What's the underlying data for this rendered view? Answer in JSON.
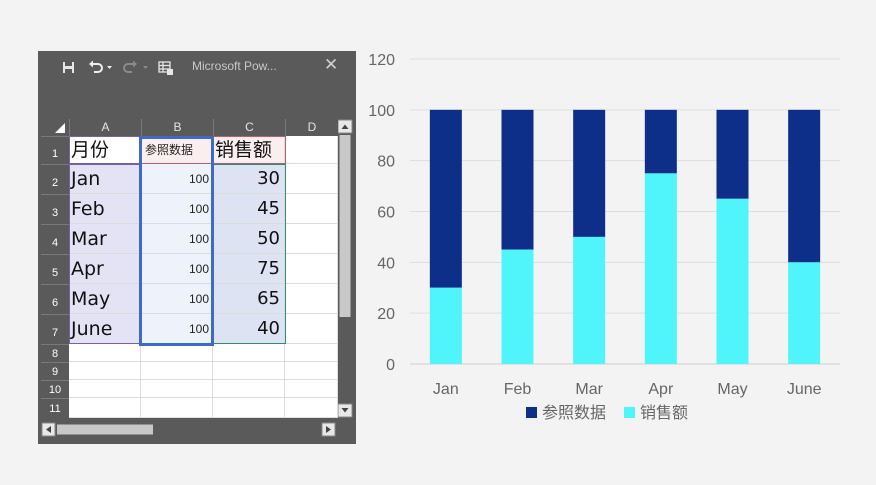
{
  "window": {
    "title": "Microsoft Pow...",
    "close_glyph": "✕",
    "toolbar_icons": [
      "save-icon",
      "undo-icon",
      "redo-icon",
      "table-icon"
    ]
  },
  "spreadsheet": {
    "columns": [
      "A",
      "B",
      "C",
      "D"
    ],
    "rows": [
      "1",
      "2",
      "3",
      "4",
      "5",
      "6",
      "7",
      "8",
      "9",
      "10",
      "11"
    ],
    "headers": [
      "月份",
      "参照数据",
      "销售额"
    ],
    "data": [
      {
        "month": "Jan",
        "ref": "100",
        "sales": "30"
      },
      {
        "month": "Feb",
        "ref": "100",
        "sales": "45"
      },
      {
        "month": "Mar",
        "ref": "100",
        "sales": "50"
      },
      {
        "month": "Apr",
        "ref": "100",
        "sales": "75"
      },
      {
        "month": "May",
        "ref": "100",
        "sales": "65"
      },
      {
        "month": "June",
        "ref": "100",
        "sales": "40"
      }
    ],
    "colors": {
      "month_fill": "#e4e3f5",
      "ref_fill": "#eef2fa",
      "sales_fill": "#dee3f3",
      "ref_border": "#3e6bc6",
      "header_border": "#b5606a"
    }
  },
  "chart_data": {
    "type": "bar",
    "categories": [
      "Jan",
      "Feb",
      "Mar",
      "Apr",
      "May",
      "June"
    ],
    "series": [
      {
        "name": "参照数据",
        "values": [
          100,
          100,
          100,
          100,
          100,
          100
        ],
        "color": "#0d2f8a"
      },
      {
        "name": "销售额",
        "values": [
          30,
          45,
          50,
          75,
          65,
          40
        ],
        "color": "#4ff5fb"
      }
    ],
    "ylim": [
      0,
      120
    ],
    "yticks": [
      "0",
      "20",
      "40",
      "60",
      "80",
      "100",
      "120"
    ],
    "grid": true,
    "legend": "bottom",
    "title": "",
    "xlabel": "",
    "ylabel": ""
  }
}
